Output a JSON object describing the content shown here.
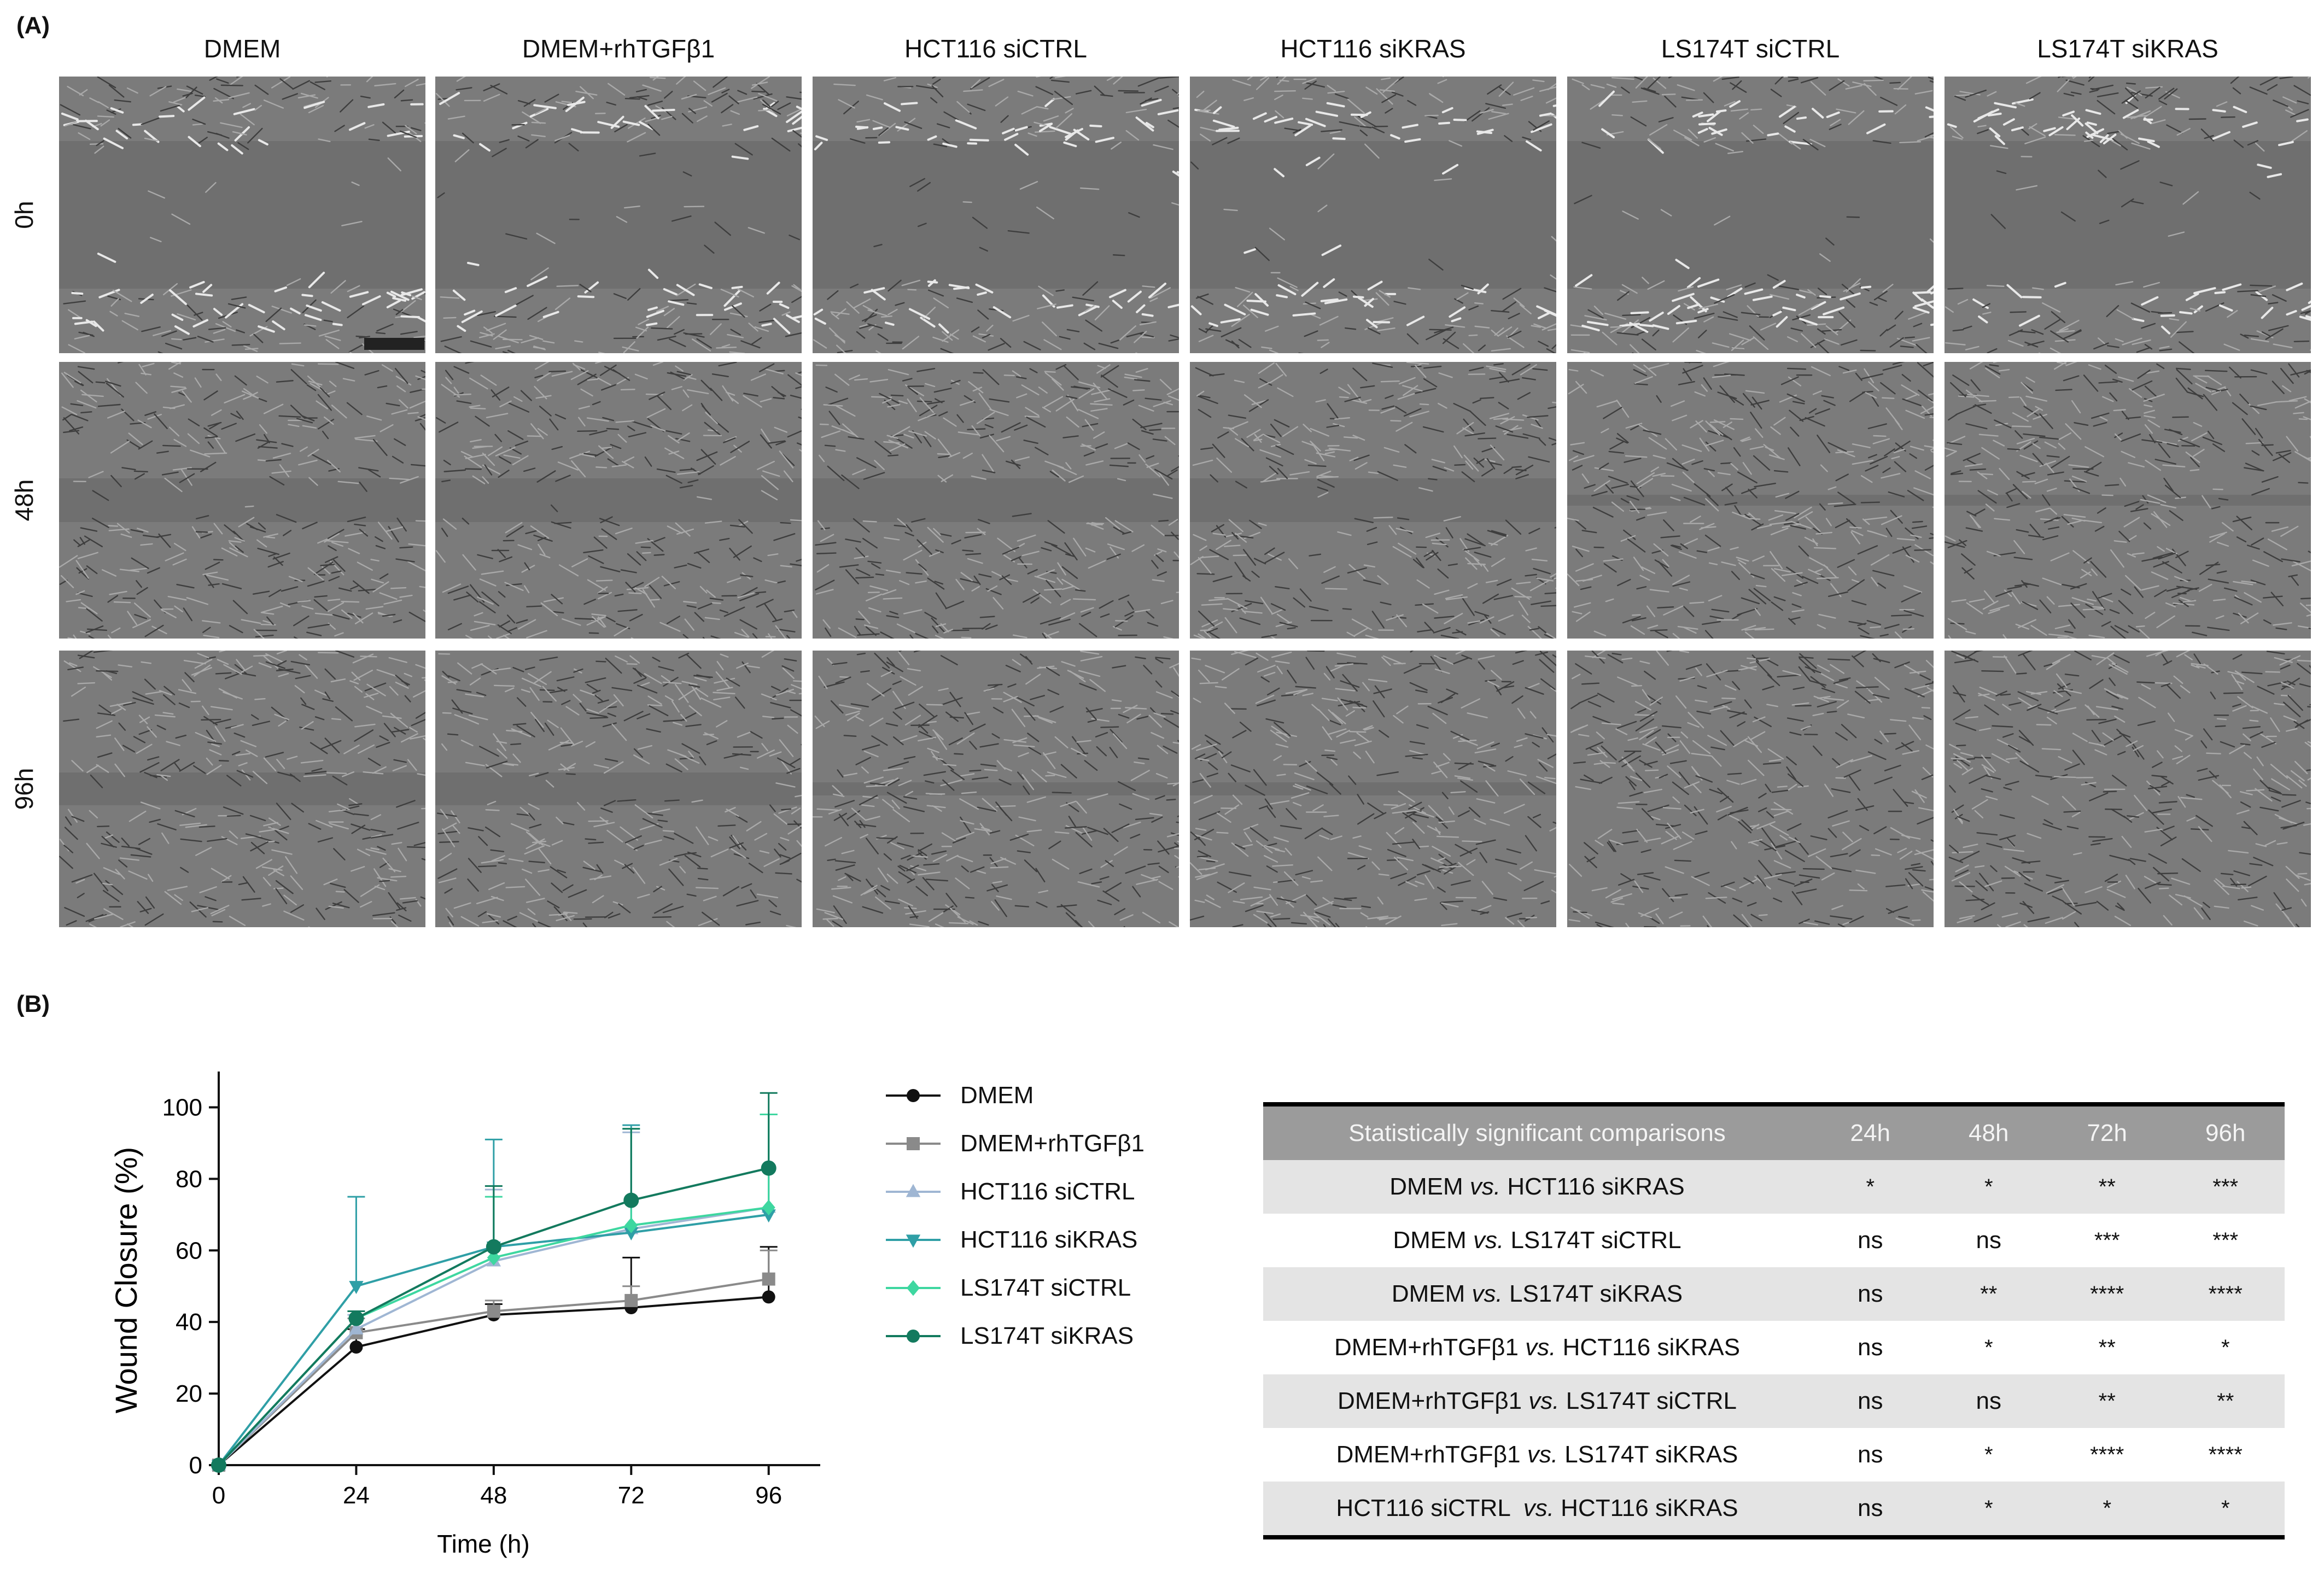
{
  "panel_a": {
    "label": "(A)",
    "columns": [
      "DMEM",
      "DMEM+rhTGFβ1",
      "HCT116 siCTRL",
      "HCT116 siKRAS",
      "LS174T siCTRL",
      "LS174T  siKRAS"
    ],
    "rows": [
      "0h",
      "48h",
      "96h"
    ]
  },
  "panel_b": {
    "label": "(B)",
    "chart_data": {
      "type": "line",
      "xlabel": "Time (h)",
      "ylabel": "Wound Closure (%)",
      "xlim": [
        0,
        105
      ],
      "ylim": [
        0,
        110
      ],
      "x_ticks": [
        0,
        24,
        48,
        72,
        96
      ],
      "y_ticks": [
        0,
        20,
        40,
        60,
        80,
        100
      ],
      "legend_position": "right",
      "series": [
        {
          "name": "DMEM",
          "color": "#111111",
          "marker": "circle",
          "x": [
            0,
            24,
            48,
            72,
            96
          ],
          "y": [
            0,
            33,
            42,
            44,
            47
          ],
          "err": [
            0,
            5,
            3,
            14,
            14
          ]
        },
        {
          "name": "DMEM+rhTGFβ1",
          "color": "#8a8a8a",
          "marker": "square",
          "x": [
            0,
            24,
            48,
            72,
            96
          ],
          "y": [
            0,
            37,
            43,
            46,
            52
          ],
          "err": [
            0,
            4,
            3,
            4,
            8
          ]
        },
        {
          "name": "HCT116 siCTRL",
          "color": "#9fb6d3",
          "marker": "triangle-up",
          "x": [
            0,
            24,
            48,
            72,
            96
          ],
          "y": [
            0,
            38,
            57,
            66,
            72
          ],
          "err": [
            0,
            4,
            20,
            27,
            26
          ]
        },
        {
          "name": "HCT116 siKRAS",
          "color": "#2f9fa6",
          "marker": "triangle-down",
          "x": [
            0,
            24,
            48,
            72,
            96
          ],
          "y": [
            0,
            50,
            61,
            65,
            70
          ],
          "err": [
            0,
            25,
            30,
            30,
            28
          ]
        },
        {
          "name": "LS174T siCTRL",
          "color": "#3ed7a0",
          "marker": "diamond",
          "x": [
            0,
            24,
            48,
            72,
            96
          ],
          "y": [
            0,
            41,
            58,
            67,
            72
          ],
          "err": [
            0,
            2,
            17,
            27,
            26
          ]
        },
        {
          "name": "LS174T siKRAS",
          "color": "#137a5e",
          "marker": "circle",
          "x": [
            0,
            24,
            48,
            72,
            96
          ],
          "y": [
            0,
            41,
            61,
            74,
            83
          ],
          "err": [
            0,
            2,
            17,
            20,
            21
          ]
        }
      ]
    }
  },
  "stats_table": {
    "headers": [
      "Statistically significant comparisons",
      "24h",
      "48h",
      "72h",
      "96h"
    ],
    "rows": [
      {
        "a": "DMEM ",
        "vs": "vs.",
        "b": " HCT116 siKRAS",
        "v": [
          "*",
          "*",
          "**",
          "***"
        ]
      },
      {
        "a": "DMEM ",
        "vs": "vs.",
        "b": " LS174T siCTRL",
        "v": [
          "ns",
          "ns",
          "***",
          "***"
        ]
      },
      {
        "a": "DMEM ",
        "vs": "vs.",
        "b": " LS174T siKRAS",
        "v": [
          "ns",
          "**",
          "****",
          "****"
        ]
      },
      {
        "a": "DMEM+rhTGFβ1 ",
        "vs": "vs.",
        "b": " HCT116 siKRAS",
        "v": [
          "ns",
          "*",
          "**",
          "*"
        ]
      },
      {
        "a": "DMEM+rhTGFβ1 ",
        "vs": "vs.",
        "b": " LS174T siCTRL",
        "v": [
          "ns",
          "ns",
          "**",
          "**"
        ]
      },
      {
        "a": "DMEM+rhTGFβ1 ",
        "vs": "vs.",
        "b": " LS174T siKRAS",
        "v": [
          "ns",
          "*",
          "****",
          "****"
        ]
      },
      {
        "a": "HCT116 siCTRL  ",
        "vs": "vs.",
        "b": " HCT116 siKRAS",
        "v": [
          "ns",
          "*",
          "*",
          "*"
        ]
      }
    ]
  }
}
